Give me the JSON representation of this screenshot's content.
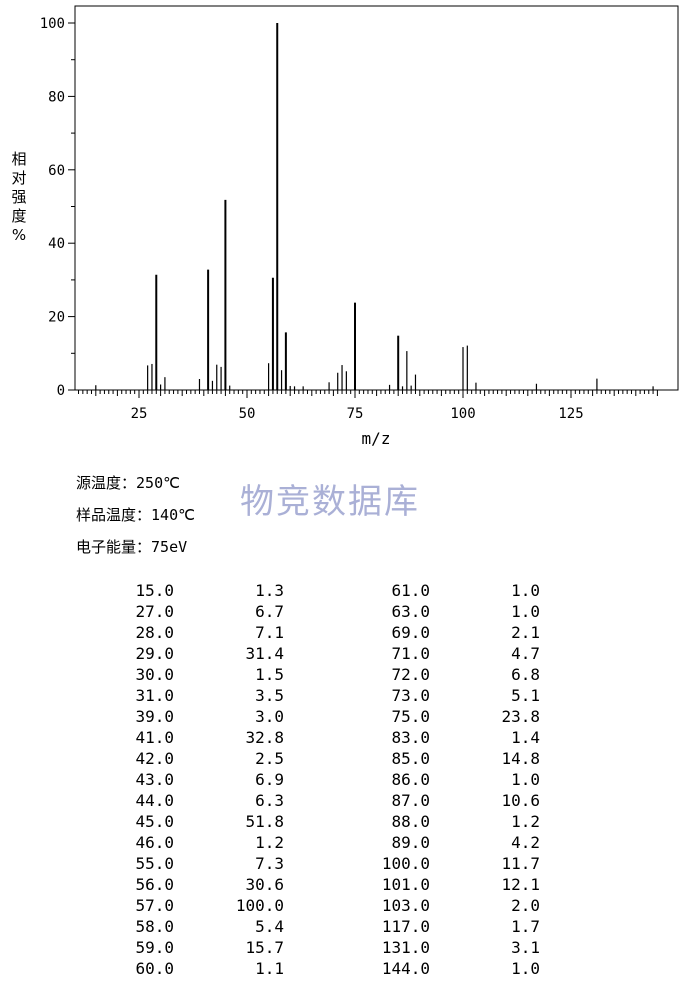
{
  "chart_data": {
    "type": "bar",
    "title": "",
    "xlabel": "m/z",
    "ylabel": [
      "相",
      "对",
      "强",
      "度",
      "%"
    ],
    "xlim": [
      10,
      145
    ],
    "ylim": [
      0,
      105
    ],
    "x_ticks": [
      25,
      50,
      75,
      100,
      125
    ],
    "y_ticks": [
      0,
      20,
      40,
      60,
      80,
      100
    ],
    "grid": false,
    "peaks": [
      {
        "mz": 15,
        "intensity": 1.3
      },
      {
        "mz": 27,
        "intensity": 6.7
      },
      {
        "mz": 28,
        "intensity": 7.1
      },
      {
        "mz": 29,
        "intensity": 31.4
      },
      {
        "mz": 30,
        "intensity": 1.5
      },
      {
        "mz": 31,
        "intensity": 3.5
      },
      {
        "mz": 39,
        "intensity": 3.0
      },
      {
        "mz": 41,
        "intensity": 32.8
      },
      {
        "mz": 42,
        "intensity": 2.5
      },
      {
        "mz": 43,
        "intensity": 6.9
      },
      {
        "mz": 44,
        "intensity": 6.3
      },
      {
        "mz": 45,
        "intensity": 51.8
      },
      {
        "mz": 46,
        "intensity": 1.2
      },
      {
        "mz": 55,
        "intensity": 7.3
      },
      {
        "mz": 56,
        "intensity": 30.6
      },
      {
        "mz": 57,
        "intensity": 100.0
      },
      {
        "mz": 58,
        "intensity": 5.4
      },
      {
        "mz": 59,
        "intensity": 15.7
      },
      {
        "mz": 60,
        "intensity": 1.1
      },
      {
        "mz": 61,
        "intensity": 1.0
      },
      {
        "mz": 63,
        "intensity": 1.0
      },
      {
        "mz": 69,
        "intensity": 2.1
      },
      {
        "mz": 71,
        "intensity": 4.7
      },
      {
        "mz": 72,
        "intensity": 6.8
      },
      {
        "mz": 73,
        "intensity": 5.1
      },
      {
        "mz": 75,
        "intensity": 23.8
      },
      {
        "mz": 83,
        "intensity": 1.4
      },
      {
        "mz": 85,
        "intensity": 14.8
      },
      {
        "mz": 86,
        "intensity": 1.0
      },
      {
        "mz": 87,
        "intensity": 10.6
      },
      {
        "mz": 88,
        "intensity": 1.2
      },
      {
        "mz": 89,
        "intensity": 4.2
      },
      {
        "mz": 100,
        "intensity": 11.7
      },
      {
        "mz": 101,
        "intensity": 12.1
      },
      {
        "mz": 103,
        "intensity": 2.0
      },
      {
        "mz": 117,
        "intensity": 1.7
      },
      {
        "mz": 131,
        "intensity": 3.1
      },
      {
        "mz": 144,
        "intensity": 1.0
      }
    ]
  },
  "watermark": "物竞数据库",
  "conditions": [
    {
      "label": "源温度：",
      "value": "250℃"
    },
    {
      "label": "样品温度：",
      "value": "140℃"
    },
    {
      "label": "电子能量：",
      "value": "75eV"
    }
  ],
  "peak_table": {
    "left": [
      [
        "15.0",
        "1.3"
      ],
      [
        "27.0",
        "6.7"
      ],
      [
        "28.0",
        "7.1"
      ],
      [
        "29.0",
        "31.4"
      ],
      [
        "30.0",
        "1.5"
      ],
      [
        "31.0",
        "3.5"
      ],
      [
        "39.0",
        "3.0"
      ],
      [
        "41.0",
        "32.8"
      ],
      [
        "42.0",
        "2.5"
      ],
      [
        "43.0",
        "6.9"
      ],
      [
        "44.0",
        "6.3"
      ],
      [
        "45.0",
        "51.8"
      ],
      [
        "46.0",
        "1.2"
      ],
      [
        "55.0",
        "7.3"
      ],
      [
        "56.0",
        "30.6"
      ],
      [
        "57.0",
        "100.0"
      ],
      [
        "58.0",
        "5.4"
      ],
      [
        "59.0",
        "15.7"
      ],
      [
        "60.0",
        "1.1"
      ]
    ],
    "right": [
      [
        "61.0",
        "1.0"
      ],
      [
        "63.0",
        "1.0"
      ],
      [
        "69.0",
        "2.1"
      ],
      [
        "71.0",
        "4.7"
      ],
      [
        "72.0",
        "6.8"
      ],
      [
        "73.0",
        "5.1"
      ],
      [
        "75.0",
        "23.8"
      ],
      [
        "83.0",
        "1.4"
      ],
      [
        "85.0",
        "14.8"
      ],
      [
        "86.0",
        "1.0"
      ],
      [
        "87.0",
        "10.6"
      ],
      [
        "88.0",
        "1.2"
      ],
      [
        "89.0",
        "4.2"
      ],
      [
        "100.0",
        "11.7"
      ],
      [
        "101.0",
        "12.1"
      ],
      [
        "103.0",
        "2.0"
      ],
      [
        "117.0",
        "1.7"
      ],
      [
        "131.0",
        "3.1"
      ],
      [
        "144.0",
        "1.0"
      ]
    ]
  }
}
